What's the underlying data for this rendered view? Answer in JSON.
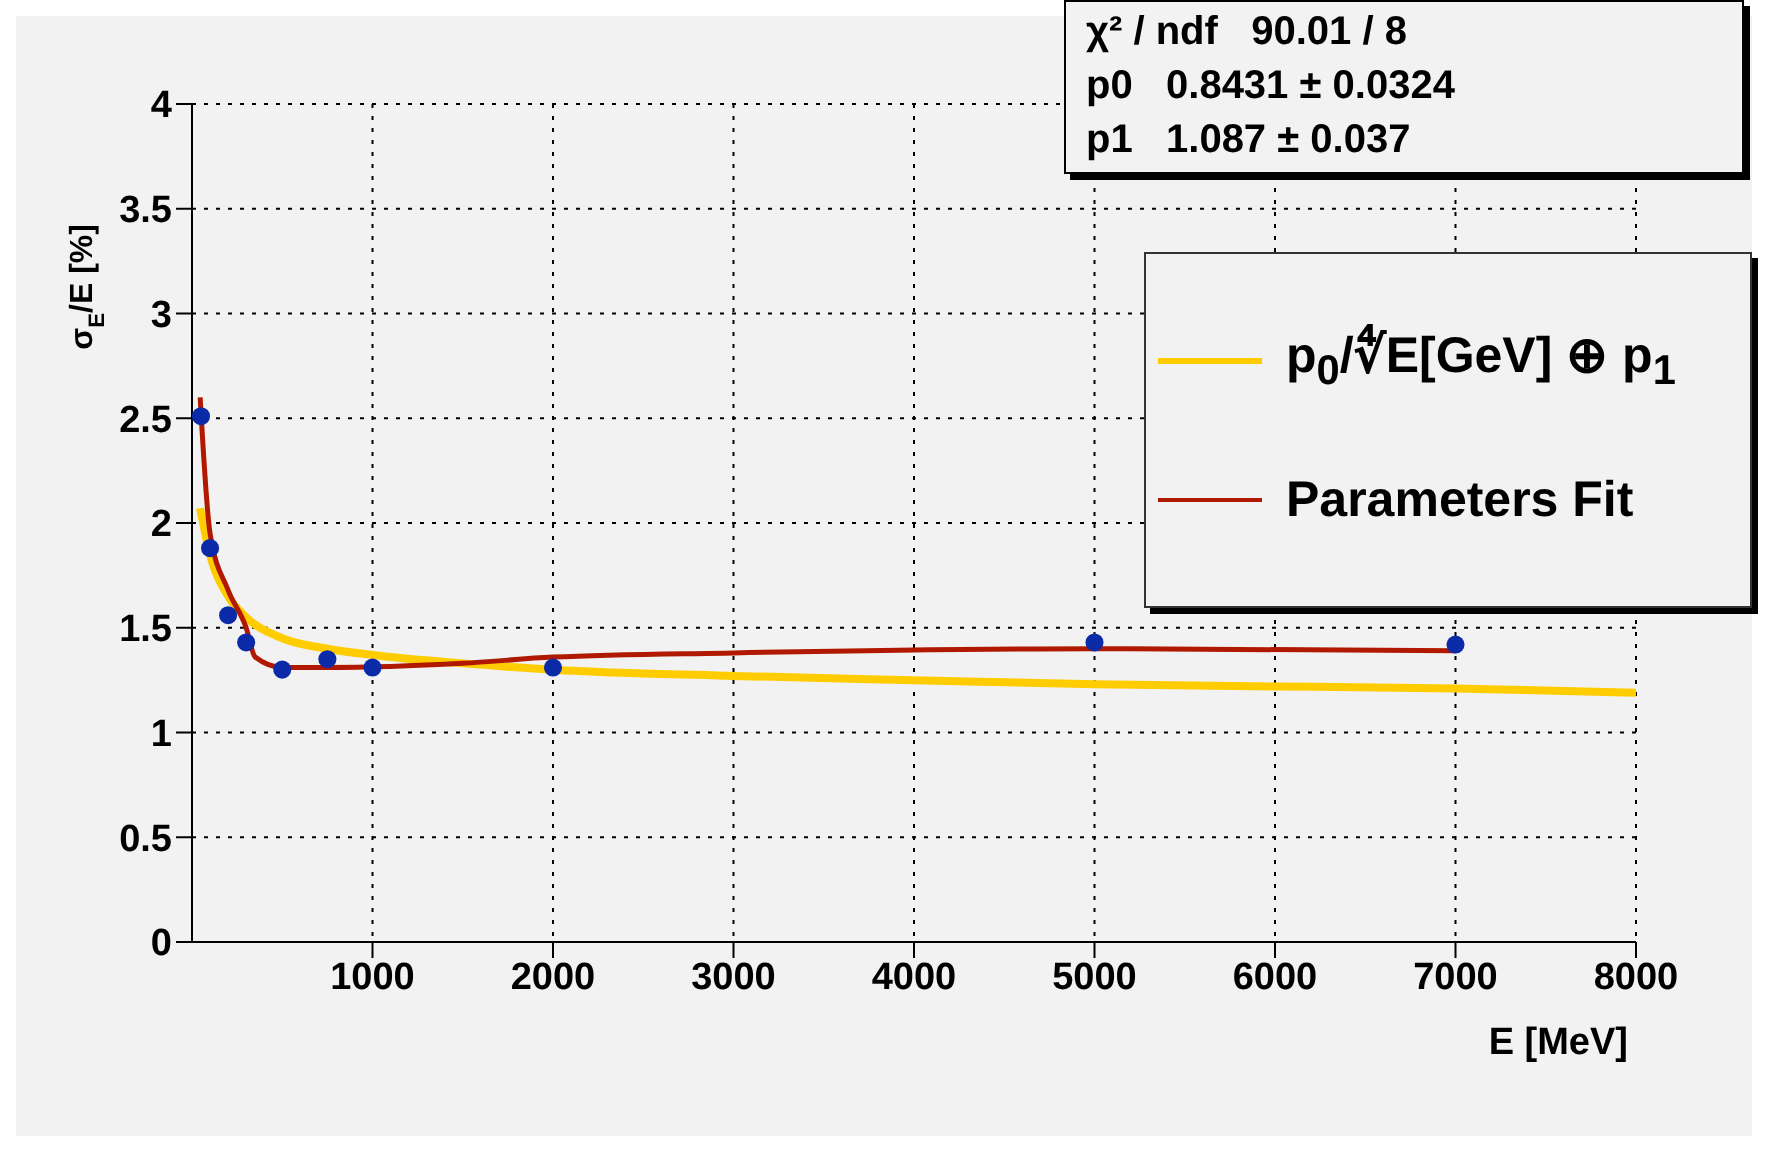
{
  "chart_data": {
    "type": "scatter",
    "xlabel": "E [MeV]",
    "ylabel": "σ$_{E}$/E [%]",
    "xlim": [
      0,
      8000
    ],
    "xticks": [
      1000,
      2000,
      3000,
      4000,
      5000,
      6000,
      7000,
      8000
    ],
    "ylim": [
      0,
      4
    ],
    "yticks": [
      0,
      0.5,
      1,
      1.5,
      2,
      2.5,
      3,
      3.5,
      4
    ],
    "grid": true,
    "legend": "top right",
    "marker": "circle",
    "annotations": [
      "χ² / ndf   90.01 / 8",
      "p0   0.8431 ± 0.0324",
      "p1   1.087 ± 0.037"
    ],
    "series": [
      {
        "color": "#0a2aa8",
        "x": [
          50,
          100,
          200,
          300,
          500,
          750,
          1000,
          2000,
          5000,
          7000
        ],
        "values": [
          2.51,
          1.88,
          1.56,
          1.43,
          1.3,
          1.35,
          1.31,
          1.31,
          1.43,
          1.42
        ]
      },
      {
        "type": "line",
        "name": "p$_{0}$/∜E[GeV] ⊕ p$_{1}$",
        "color": "#ffcc00",
        "marker": "none",
        "x": [
          45,
          100,
          200,
          300,
          500,
          750,
          1000,
          1500,
          2000,
          3000,
          4000,
          5000,
          6000,
          7000,
          8000
        ],
        "values": [
          2.07,
          1.85,
          1.65,
          1.55,
          1.45,
          1.4,
          1.37,
          1.33,
          1.3,
          1.27,
          1.25,
          1.23,
          1.22,
          1.21,
          1.19
        ]
      },
      {
        "type": "line",
        "name": "Parameters Fit",
        "color": "#b01800",
        "marker": "none",
        "x": [
          45,
          100,
          200,
          300,
          350,
          500,
          750,
          1500,
          2000,
          3000,
          5000,
          7000
        ],
        "values": [
          2.6,
          1.95,
          1.68,
          1.5,
          1.36,
          1.31,
          1.31,
          1.33,
          1.36,
          1.38,
          1.4,
          1.39
        ]
      }
    ]
  }
}
